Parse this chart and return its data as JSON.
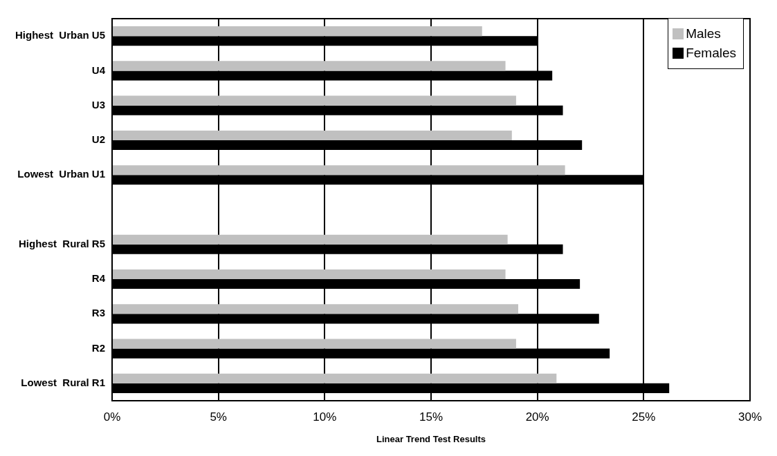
{
  "chart_data": {
    "type": "bar",
    "orientation": "horizontal",
    "xlabel": "Linear Trend Test Results",
    "categories": [
      "Highest  Urban U5",
      "U4",
      "U3",
      "U2",
      "Lowest  Urban U1",
      null,
      "Highest  Rural R5",
      "R4",
      "R3",
      "R2",
      "Lowest  Rural R1"
    ],
    "series": [
      {
        "name": "Males",
        "color": "#c0c0c0",
        "values": [
          17.4,
          18.5,
          19.0,
          18.8,
          21.3,
          null,
          18.6,
          18.5,
          19.1,
          19.0,
          20.9
        ]
      },
      {
        "name": "Females",
        "color": "#000000",
        "values": [
          20.0,
          20.7,
          21.2,
          22.1,
          25.0,
          null,
          21.2,
          22.0,
          22.9,
          23.4,
          26.2
        ]
      }
    ],
    "xlim": [
      0,
      30
    ],
    "xticks": [
      {
        "value": 0,
        "label": "0%"
      },
      {
        "value": 5,
        "label": "5%"
      },
      {
        "value": 10,
        "label": "10%"
      },
      {
        "value": 15,
        "label": "15%"
      },
      {
        "value": 20,
        "label": "20%"
      },
      {
        "value": 25,
        "label": "25%"
      },
      {
        "value": 30,
        "label": "30%"
      }
    ],
    "grid": "x",
    "legend": "top right"
  }
}
